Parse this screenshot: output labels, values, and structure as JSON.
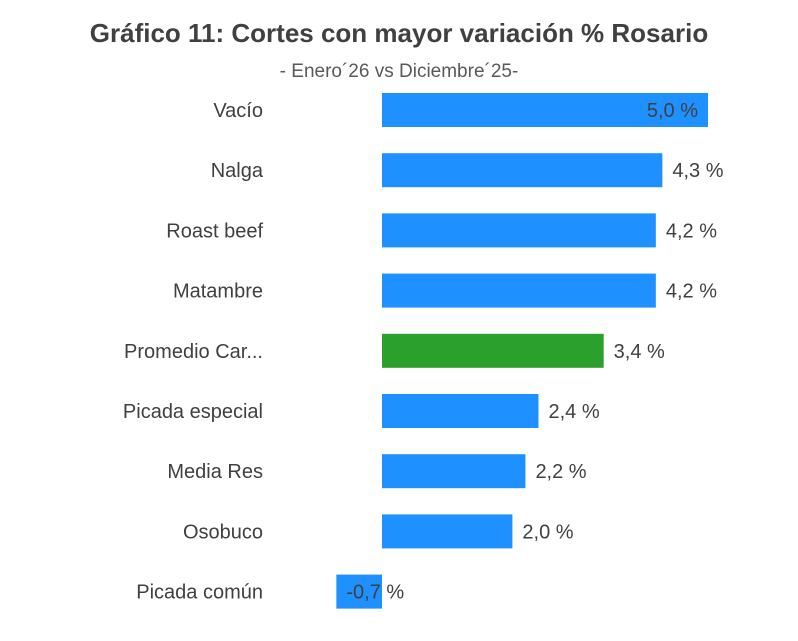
{
  "chart_data": {
    "type": "bar",
    "orientation": "horizontal",
    "title": "Gráfico 11: Cortes con mayor variación % Rosario",
    "subtitle": "- Enero´26 vs Diciembre´25-",
    "categories": [
      "Vacío",
      "Nalga",
      "Roast beef",
      "Matambre",
      "Promedio Car...",
      "Picada especial",
      "Media Res",
      "Osobuco",
      "Picada común"
    ],
    "values": [
      5.0,
      4.3,
      4.2,
      4.2,
      3.4,
      2.4,
      2.2,
      2.0,
      -0.7
    ],
    "value_labels": [
      "5,0 %",
      "4,3 %",
      "4,2 %",
      "4,2 %",
      "3,4 %",
      "2,4 %",
      "2,2 %",
      "2,0 %",
      "-0,7 %"
    ],
    "colors": {
      "default": "#1e90ff",
      "highlight": "#2ca02c",
      "highlight_category": "Promedio Car..."
    },
    "grid": false,
    "legend": "none"
  }
}
